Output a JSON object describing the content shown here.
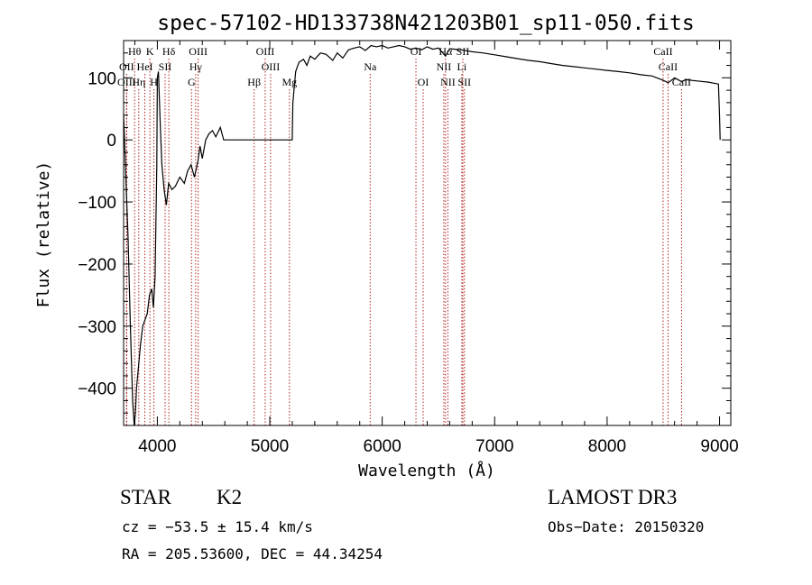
{
  "title": "spec-57102-HD133738N421203B01_sp11-050.fits",
  "chart_data": {
    "type": "line",
    "xlabel": "Wavelength (Å)",
    "ylabel": "Flux (relative)",
    "xlim": [
      3700,
      9100
    ],
    "ylim": [
      -460,
      160
    ],
    "xticks": [
      4000,
      5000,
      6000,
      7000,
      8000,
      9000
    ],
    "yticks": [
      100,
      0,
      -100,
      -200,
      -300,
      -400
    ],
    "ytick_labels": [
      "100",
      "0",
      "−100",
      "−200",
      "−300",
      "−400"
    ],
    "series": [
      {
        "color": "#000000",
        "points": [
          [
            3700,
            40
          ],
          [
            3720,
            -60
          ],
          [
            3740,
            -160
          ],
          [
            3760,
            -300
          ],
          [
            3780,
            -420
          ],
          [
            3795,
            -460
          ],
          [
            3805,
            -440
          ],
          [
            3815,
            -400
          ],
          [
            3830,
            -370
          ],
          [
            3850,
            -330
          ],
          [
            3870,
            -300
          ],
          [
            3890,
            -290
          ],
          [
            3910,
            -280
          ],
          [
            3930,
            -250
          ],
          [
            3950,
            -240
          ],
          [
            3965,
            -270
          ],
          [
            3980,
            -220
          ],
          [
            3995,
            -40
          ],
          [
            4000,
            100
          ],
          [
            4010,
            110
          ],
          [
            4025,
            30
          ],
          [
            4040,
            -40
          ],
          [
            4060,
            -80
          ],
          [
            4080,
            -105
          ],
          [
            4100,
            -70
          ],
          [
            4130,
            -80
          ],
          [
            4160,
            -75
          ],
          [
            4200,
            -60
          ],
          [
            4240,
            -70
          ],
          [
            4270,
            -50
          ],
          [
            4300,
            -40
          ],
          [
            4330,
            -60
          ],
          [
            4360,
            -35
          ],
          [
            4380,
            -10
          ],
          [
            4400,
            -30
          ],
          [
            4430,
            0
          ],
          [
            4460,
            10
          ],
          [
            4490,
            15
          ],
          [
            4520,
            5
          ],
          [
            4560,
            20
          ],
          [
            4590,
            0
          ],
          [
            4600,
            0
          ],
          [
            5200,
            0
          ],
          [
            5205,
            60
          ],
          [
            5230,
            110
          ],
          [
            5260,
            125
          ],
          [
            5300,
            130
          ],
          [
            5330,
            120
          ],
          [
            5360,
            135
          ],
          [
            5400,
            130
          ],
          [
            5450,
            140
          ],
          [
            5500,
            138
          ],
          [
            5560,
            128
          ],
          [
            5600,
            140
          ],
          [
            5650,
            132
          ],
          [
            5700,
            145
          ],
          [
            5750,
            148
          ],
          [
            5800,
            150
          ],
          [
            5850,
            144
          ],
          [
            5900,
            152
          ],
          [
            5950,
            150
          ],
          [
            6000,
            152
          ],
          [
            6050,
            148
          ],
          [
            6100,
            150
          ],
          [
            6150,
            152
          ],
          [
            6200,
            150
          ],
          [
            6250,
            146
          ],
          [
            6300,
            148
          ],
          [
            6350,
            145
          ],
          [
            6400,
            150
          ],
          [
            6450,
            146
          ],
          [
            6500,
            148
          ],
          [
            6563,
            135
          ],
          [
            6600,
            147
          ],
          [
            6700,
            145
          ],
          [
            6800,
            142
          ],
          [
            6900,
            140
          ],
          [
            7000,
            137
          ],
          [
            7100,
            134
          ],
          [
            7200,
            131
          ],
          [
            7300,
            128
          ],
          [
            7400,
            126
          ],
          [
            7500,
            123
          ],
          [
            7600,
            120
          ],
          [
            7700,
            118
          ],
          [
            7800,
            116
          ],
          [
            7900,
            114
          ],
          [
            8000,
            112
          ],
          [
            8100,
            110
          ],
          [
            8200,
            108
          ],
          [
            8300,
            105
          ],
          [
            8400,
            103
          ],
          [
            8498,
            96
          ],
          [
            8542,
            92
          ],
          [
            8600,
            100
          ],
          [
            8662,
            94
          ],
          [
            8700,
            97
          ],
          [
            8800,
            95
          ],
          [
            8900,
            93
          ],
          [
            8990,
            90
          ],
          [
            9000,
            40
          ],
          [
            9005,
            0
          ]
        ]
      }
    ],
    "lines_color": "#b22222",
    "line_groups": [
      [
        {
          "label": "Hθ",
          "x": 3798
        },
        {
          "label": "K",
          "x": 3934
        },
        {
          "label": "Hδ",
          "x": 4102
        },
        {
          "label": "OIII",
          "x": 4363
        },
        {
          "label": "OIII",
          "x": 4959
        },
        {
          "label": "OI",
          "x": 6300
        },
        {
          "label": "Hα",
          "x": 6563
        },
        {
          "label": "SII",
          "x": 6717
        },
        {
          "label": "CaII",
          "x": 8498
        }
      ],
      [
        {
          "label": "OII",
          "x": 3727
        },
        {
          "label": "HeI",
          "x": 3889
        },
        {
          "label": "SII",
          "x": 4069
        },
        {
          "label": "Hγ",
          "x": 4341
        },
        {
          "label": "OIII",
          "x": 5007
        },
        {
          "label": "Na",
          "x": 5893
        },
        {
          "label": "NII",
          "x": 6548
        },
        {
          "label": "Li",
          "x": 6708
        },
        {
          "label": "CaII",
          "x": 8542
        }
      ],
      [
        {
          "label": "OIII",
          "x": 3727
        },
        {
          "label": "Hη",
          "x": 3835
        },
        {
          "label": "H",
          "x": 3969
        },
        {
          "label": "G",
          "x": 4304
        },
        {
          "label": "Hβ",
          "x": 4861
        },
        {
          "label": "Mg",
          "x": 5175
        },
        {
          "label": "OI",
          "x": 6364
        },
        {
          "label": "NII",
          "x": 6584
        },
        {
          "label": "SII",
          "x": 6731
        },
        {
          "label": "CaII",
          "x": 8662
        }
      ]
    ]
  },
  "info": {
    "class_label": "STAR",
    "subclass_label": "K2",
    "survey": "LAMOST DR3",
    "cz": "cz = −53.5 ± 15.4 km/s",
    "obs_date": "Obs−Date: 20150320",
    "radec": "RA = 205.53600, DEC =  44.34254"
  }
}
